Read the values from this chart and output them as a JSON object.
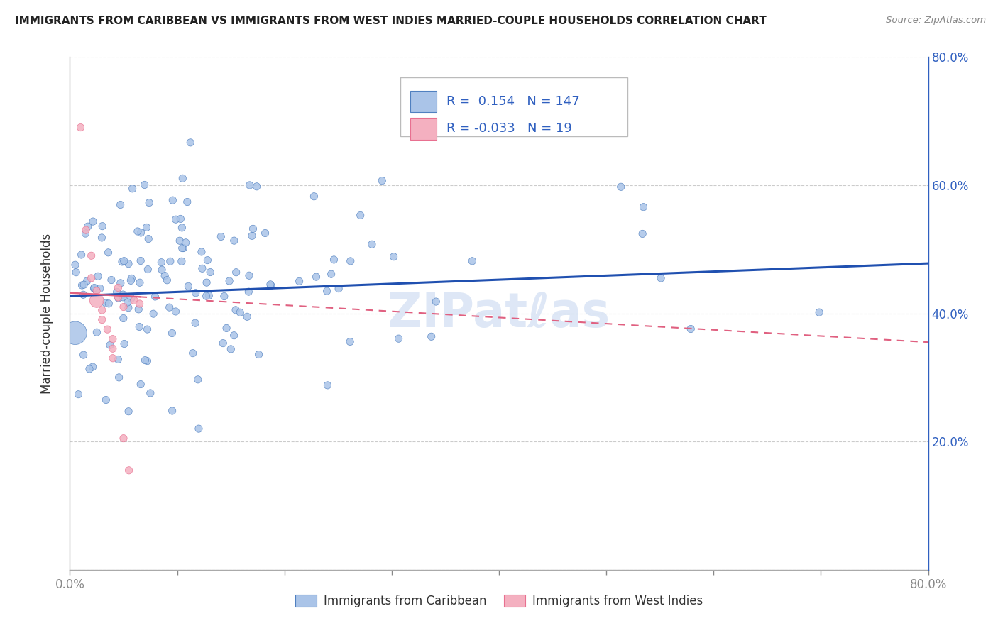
{
  "title": "IMMIGRANTS FROM CARIBBEAN VS IMMIGRANTS FROM WEST INDIES MARRIED-COUPLE HOUSEHOLDS CORRELATION CHART",
  "source": "Source: ZipAtlas.com",
  "ylabel": "Married-couple Households",
  "legend_label_1": "Immigrants from Caribbean",
  "legend_label_2": "Immigrants from West Indies",
  "R1": 0.154,
  "N1": 147,
  "R2": -0.033,
  "N2": 19,
  "color_blue_fill": "#aac4e8",
  "color_pink_fill": "#f4b0c0",
  "color_blue_edge": "#5080c0",
  "color_pink_edge": "#e87090",
  "color_blue_line": "#2050b0",
  "color_pink_line": "#e06080",
  "color_blue_text": "#3060c0",
  "xmin": 0.0,
  "xmax": 0.8,
  "ymin": 0.0,
  "ymax": 0.8,
  "grid_color": "#cccccc",
  "background_color": "#ffffff",
  "blue_line_x0": 0.0,
  "blue_line_y0": 0.427,
  "blue_line_x1": 0.8,
  "blue_line_y1": 0.478,
  "pink_line_x0": 0.0,
  "pink_line_y0": 0.432,
  "pink_line_x1": 0.8,
  "pink_line_y1": 0.355,
  "watermark_text": "ZIPatℓas",
  "watermark_color": "#c8d8f0",
  "watermark_alpha": 0.6
}
